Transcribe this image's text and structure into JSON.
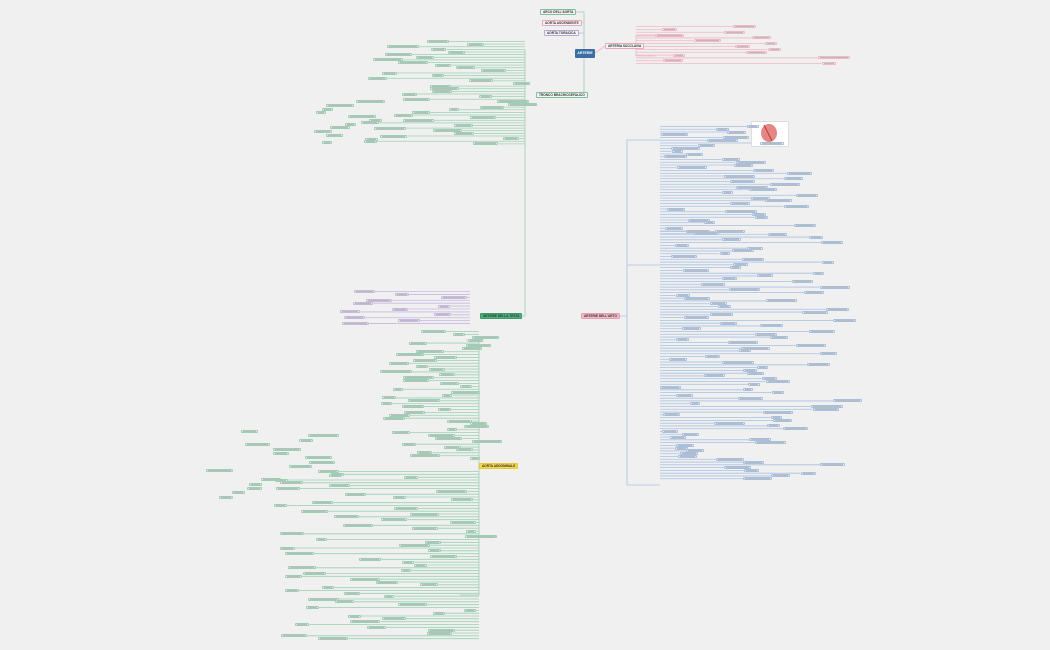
{
  "root": {
    "label": "ARTERIE"
  },
  "branches": [
    {
      "id": "b1",
      "label": "ARCO DELL'AORTA",
      "color": "#7fbf9f"
    },
    {
      "id": "b2",
      "label": "AORTA ASCENDENTE",
      "color": "#e8a8b8"
    },
    {
      "id": "b3",
      "label": "AORTA TORACICA",
      "color": "#b8a8d8"
    },
    {
      "id": "b4",
      "label": "TRONCO BRACHIOCEFALICO",
      "color": "#7fbf9f"
    },
    {
      "id": "b5",
      "label": "ARTERIA SUCCLAVIA",
      "color": "#e8a8b8"
    },
    {
      "id": "b6",
      "label": "ARTERIE DELLA TESTA",
      "color": "#4caf7d"
    },
    {
      "id": "b7",
      "label": "AORTA ADDOMINALE",
      "color": "#f5d94e"
    },
    {
      "id": "b8",
      "label": "ARTERIE DELL'ARTO",
      "color": "#f2b8c6"
    }
  ],
  "colors": {
    "background": "#f0f0f0",
    "root": "#3b6ea5",
    "green": "#9ccfb3",
    "pink": "#f0b8c6",
    "purple": "#c8b8e0",
    "blue": "#a8c0e0"
  }
}
